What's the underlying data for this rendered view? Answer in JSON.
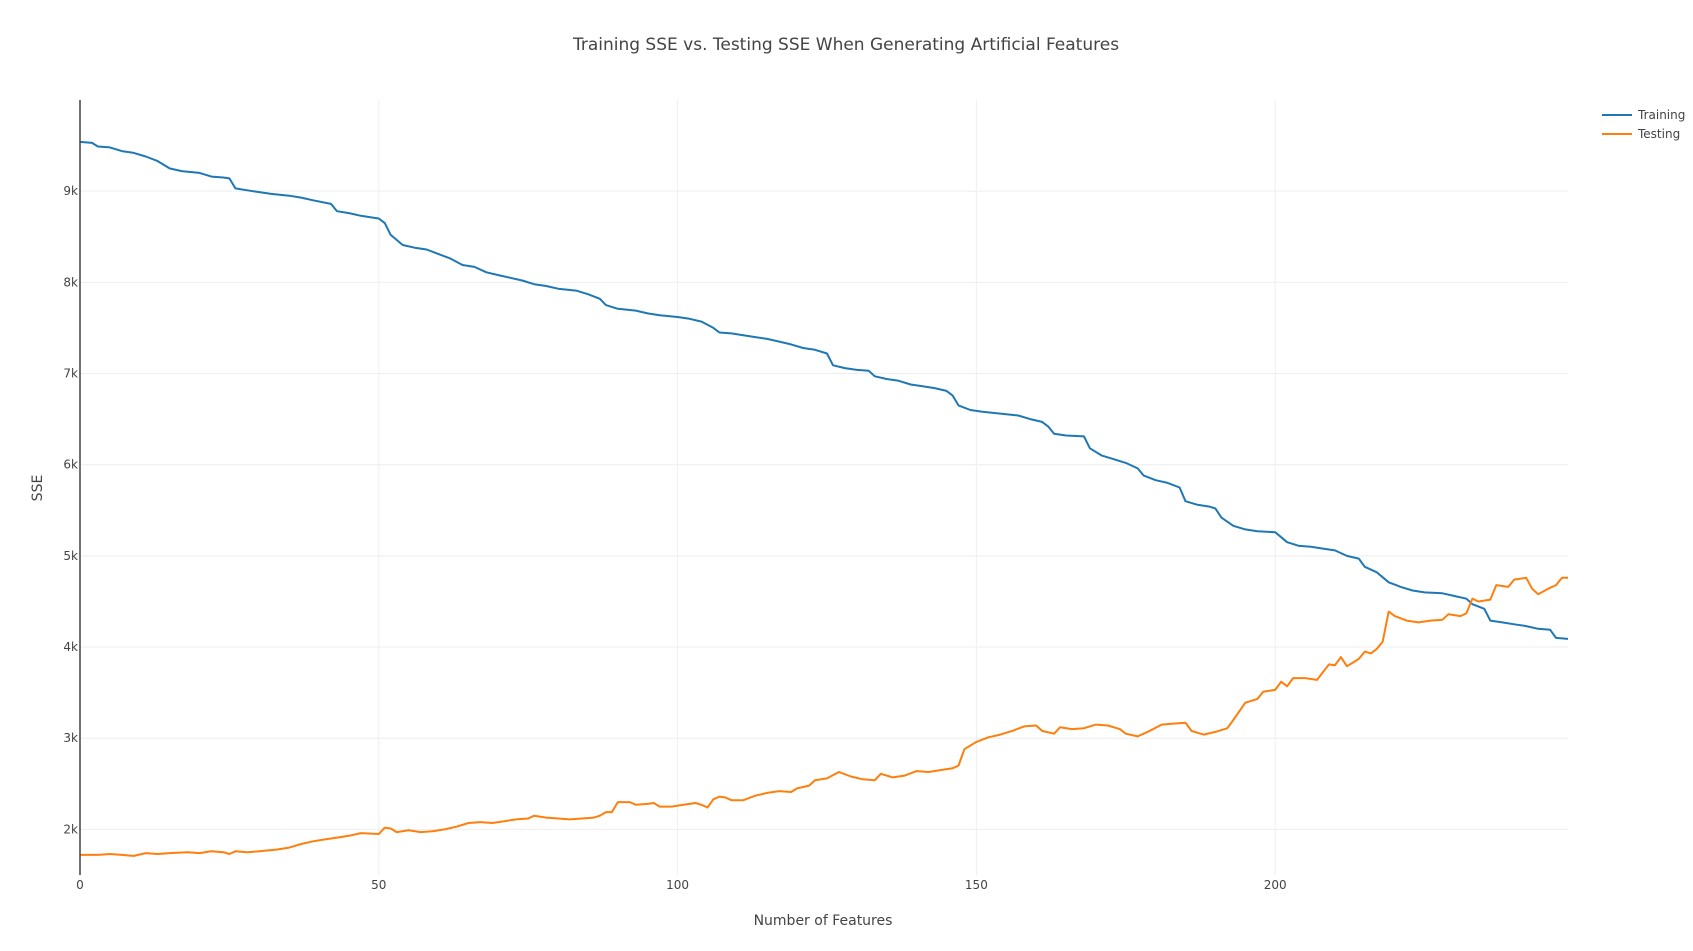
{
  "chart_data": {
    "type": "line",
    "title": "Training SSE vs. Testing SSE When Generating Artificial Features",
    "xlabel": "Number of Features",
    "ylabel": "SSE",
    "xlim": [
      0,
      249
    ],
    "ylim": [
      1500,
      10000
    ],
    "x_ticks": [
      0,
      50,
      100,
      150,
      200
    ],
    "x_tick_labels": [
      "0",
      "50",
      "100",
      "150",
      "200"
    ],
    "y_ticks": [
      2000,
      3000,
      4000,
      5000,
      6000,
      7000,
      8000,
      9000
    ],
    "y_tick_labels": [
      "2k",
      "3k",
      "4k",
      "5k",
      "6k",
      "7k",
      "8k",
      "9k"
    ],
    "grid": true,
    "legend_position": "top-right",
    "series": [
      {
        "name": "Training",
        "color": "#1f77b4",
        "points": [
          [
            0,
            9540
          ],
          [
            2,
            9530
          ],
          [
            3,
            9490
          ],
          [
            5,
            9480
          ],
          [
            7,
            9440
          ],
          [
            9,
            9420
          ],
          [
            11,
            9380
          ],
          [
            13,
            9330
          ],
          [
            15,
            9250
          ],
          [
            17,
            9220
          ],
          [
            20,
            9200
          ],
          [
            22,
            9160
          ],
          [
            24,
            9150
          ],
          [
            25,
            9140
          ],
          [
            26,
            9030
          ],
          [
            28,
            9010
          ],
          [
            30,
            8990
          ],
          [
            32,
            8970
          ],
          [
            35,
            8950
          ],
          [
            37,
            8930
          ],
          [
            39,
            8900
          ],
          [
            42,
            8860
          ],
          [
            43,
            8780
          ],
          [
            45,
            8760
          ],
          [
            47,
            8730
          ],
          [
            49,
            8710
          ],
          [
            50,
            8700
          ],
          [
            51,
            8650
          ],
          [
            52,
            8520
          ],
          [
            54,
            8410
          ],
          [
            56,
            8380
          ],
          [
            58,
            8360
          ],
          [
            60,
            8310
          ],
          [
            62,
            8260
          ],
          [
            64,
            8190
          ],
          [
            66,
            8170
          ],
          [
            68,
            8110
          ],
          [
            70,
            8080
          ],
          [
            72,
            8050
          ],
          [
            74,
            8020
          ],
          [
            76,
            7980
          ],
          [
            78,
            7960
          ],
          [
            80,
            7930
          ],
          [
            83,
            7910
          ],
          [
            85,
            7870
          ],
          [
            87,
            7820
          ],
          [
            88,
            7750
          ],
          [
            90,
            7710
          ],
          [
            93,
            7690
          ],
          [
            95,
            7660
          ],
          [
            97,
            7640
          ],
          [
            100,
            7620
          ],
          [
            102,
            7600
          ],
          [
            104,
            7570
          ],
          [
            106,
            7500
          ],
          [
            107,
            7450
          ],
          [
            109,
            7440
          ],
          [
            111,
            7420
          ],
          [
            113,
            7400
          ],
          [
            115,
            7380
          ],
          [
            117,
            7350
          ],
          [
            119,
            7320
          ],
          [
            121,
            7280
          ],
          [
            123,
            7260
          ],
          [
            125,
            7220
          ],
          [
            126,
            7090
          ],
          [
            128,
            7060
          ],
          [
            130,
            7040
          ],
          [
            132,
            7030
          ],
          [
            133,
            6970
          ],
          [
            135,
            6940
          ],
          [
            137,
            6920
          ],
          [
            139,
            6880
          ],
          [
            141,
            6860
          ],
          [
            143,
            6840
          ],
          [
            145,
            6810
          ],
          [
            146,
            6760
          ],
          [
            147,
            6650
          ],
          [
            149,
            6600
          ],
          [
            151,
            6580
          ],
          [
            154,
            6560
          ],
          [
            157,
            6540
          ],
          [
            159,
            6500
          ],
          [
            161,
            6470
          ],
          [
            162,
            6420
          ],
          [
            163,
            6340
          ],
          [
            165,
            6320
          ],
          [
            168,
            6310
          ],
          [
            169,
            6180
          ],
          [
            171,
            6100
          ],
          [
            173,
            6060
          ],
          [
            175,
            6020
          ],
          [
            177,
            5960
          ],
          [
            178,
            5880
          ],
          [
            180,
            5830
          ],
          [
            182,
            5800
          ],
          [
            184,
            5750
          ],
          [
            185,
            5600
          ],
          [
            187,
            5560
          ],
          [
            189,
            5540
          ],
          [
            190,
            5520
          ],
          [
            191,
            5420
          ],
          [
            193,
            5330
          ],
          [
            195,
            5290
          ],
          [
            197,
            5270
          ],
          [
            200,
            5260
          ],
          [
            202,
            5150
          ],
          [
            204,
            5110
          ],
          [
            206,
            5100
          ],
          [
            208,
            5080
          ],
          [
            210,
            5060
          ],
          [
            212,
            5000
          ],
          [
            214,
            4970
          ],
          [
            215,
            4880
          ],
          [
            217,
            4820
          ],
          [
            219,
            4710
          ],
          [
            221,
            4660
          ],
          [
            223,
            4620
          ],
          [
            225,
            4600
          ],
          [
            228,
            4590
          ],
          [
            230,
            4560
          ],
          [
            232,
            4530
          ],
          [
            233,
            4470
          ],
          [
            235,
            4420
          ],
          [
            236,
            4290
          ],
          [
            238,
            4270
          ],
          [
            240,
            4250
          ],
          [
            242,
            4230
          ],
          [
            244,
            4200
          ],
          [
            246,
            4190
          ],
          [
            247,
            4100
          ],
          [
            249,
            4090
          ]
        ]
      },
      {
        "name": "Testing",
        "color": "#ff7f0e",
        "points": [
          [
            0,
            1720
          ],
          [
            3,
            1720
          ],
          [
            5,
            1730
          ],
          [
            7,
            1720
          ],
          [
            9,
            1710
          ],
          [
            11,
            1740
          ],
          [
            13,
            1730
          ],
          [
            15,
            1740
          ],
          [
            18,
            1750
          ],
          [
            20,
            1740
          ],
          [
            22,
            1760
          ],
          [
            24,
            1750
          ],
          [
            25,
            1730
          ],
          [
            26,
            1760
          ],
          [
            28,
            1750
          ],
          [
            30,
            1760
          ],
          [
            33,
            1780
          ],
          [
            35,
            1800
          ],
          [
            37,
            1840
          ],
          [
            39,
            1870
          ],
          [
            41,
            1890
          ],
          [
            43,
            1910
          ],
          [
            45,
            1930
          ],
          [
            47,
            1960
          ],
          [
            50,
            1950
          ],
          [
            51,
            2020
          ],
          [
            52,
            2010
          ],
          [
            53,
            1970
          ],
          [
            55,
            1990
          ],
          [
            57,
            1970
          ],
          [
            59,
            1980
          ],
          [
            61,
            2000
          ],
          [
            63,
            2030
          ],
          [
            65,
            2070
          ],
          [
            67,
            2080
          ],
          [
            69,
            2070
          ],
          [
            71,
            2090
          ],
          [
            73,
            2110
          ],
          [
            75,
            2120
          ],
          [
            76,
            2150
          ],
          [
            78,
            2130
          ],
          [
            80,
            2120
          ],
          [
            82,
            2110
          ],
          [
            84,
            2120
          ],
          [
            86,
            2130
          ],
          [
            87,
            2150
          ],
          [
            88,
            2190
          ],
          [
            89,
            2190
          ],
          [
            90,
            2300
          ],
          [
            92,
            2300
          ],
          [
            93,
            2270
          ],
          [
            95,
            2280
          ],
          [
            96,
            2290
          ],
          [
            97,
            2250
          ],
          [
            99,
            2250
          ],
          [
            101,
            2270
          ],
          [
            103,
            2290
          ],
          [
            104,
            2270
          ],
          [
            105,
            2240
          ],
          [
            106,
            2330
          ],
          [
            107,
            2360
          ],
          [
            108,
            2350
          ],
          [
            109,
            2320
          ],
          [
            111,
            2320
          ],
          [
            113,
            2370
          ],
          [
            115,
            2400
          ],
          [
            117,
            2420
          ],
          [
            119,
            2410
          ],
          [
            120,
            2450
          ],
          [
            122,
            2480
          ],
          [
            123,
            2540
          ],
          [
            125,
            2560
          ],
          [
            127,
            2630
          ],
          [
            129,
            2580
          ],
          [
            131,
            2550
          ],
          [
            133,
            2540
          ],
          [
            134,
            2610
          ],
          [
            136,
            2570
          ],
          [
            138,
            2590
          ],
          [
            140,
            2640
          ],
          [
            142,
            2630
          ],
          [
            144,
            2650
          ],
          [
            146,
            2670
          ],
          [
            147,
            2700
          ],
          [
            148,
            2880
          ],
          [
            150,
            2960
          ],
          [
            152,
            3010
          ],
          [
            154,
            3040
          ],
          [
            156,
            3080
          ],
          [
            158,
            3130
          ],
          [
            160,
            3140
          ],
          [
            161,
            3080
          ],
          [
            163,
            3050
          ],
          [
            164,
            3120
          ],
          [
            166,
            3100
          ],
          [
            168,
            3110
          ],
          [
            170,
            3150
          ],
          [
            172,
            3140
          ],
          [
            174,
            3100
          ],
          [
            175,
            3050
          ],
          [
            177,
            3020
          ],
          [
            179,
            3080
          ],
          [
            181,
            3150
          ],
          [
            183,
            3160
          ],
          [
            185,
            3170
          ],
          [
            186,
            3080
          ],
          [
            188,
            3040
          ],
          [
            190,
            3070
          ],
          [
            192,
            3110
          ],
          [
            193,
            3200
          ],
          [
            195,
            3390
          ],
          [
            197,
            3430
          ],
          [
            198,
            3510
          ],
          [
            200,
            3530
          ],
          [
            201,
            3620
          ],
          [
            202,
            3570
          ],
          [
            203,
            3660
          ],
          [
            205,
            3660
          ],
          [
            207,
            3640
          ],
          [
            209,
            3810
          ],
          [
            210,
            3800
          ],
          [
            211,
            3890
          ],
          [
            212,
            3790
          ],
          [
            213,
            3830
          ],
          [
            214,
            3870
          ],
          [
            215,
            3950
          ],
          [
            216,
            3930
          ],
          [
            217,
            3980
          ],
          [
            218,
            4060
          ],
          [
            219,
            4390
          ],
          [
            220,
            4340
          ],
          [
            222,
            4290
          ],
          [
            224,
            4270
          ],
          [
            226,
            4290
          ],
          [
            228,
            4300
          ],
          [
            229,
            4360
          ],
          [
            231,
            4340
          ],
          [
            232,
            4370
          ],
          [
            233,
            4530
          ],
          [
            234,
            4500
          ],
          [
            236,
            4520
          ],
          [
            237,
            4680
          ],
          [
            239,
            4660
          ],
          [
            240,
            4740
          ],
          [
            242,
            4760
          ],
          [
            243,
            4640
          ],
          [
            244,
            4580
          ],
          [
            246,
            4650
          ],
          [
            247,
            4680
          ],
          [
            248,
            4760
          ],
          [
            249,
            4760
          ]
        ]
      }
    ]
  }
}
